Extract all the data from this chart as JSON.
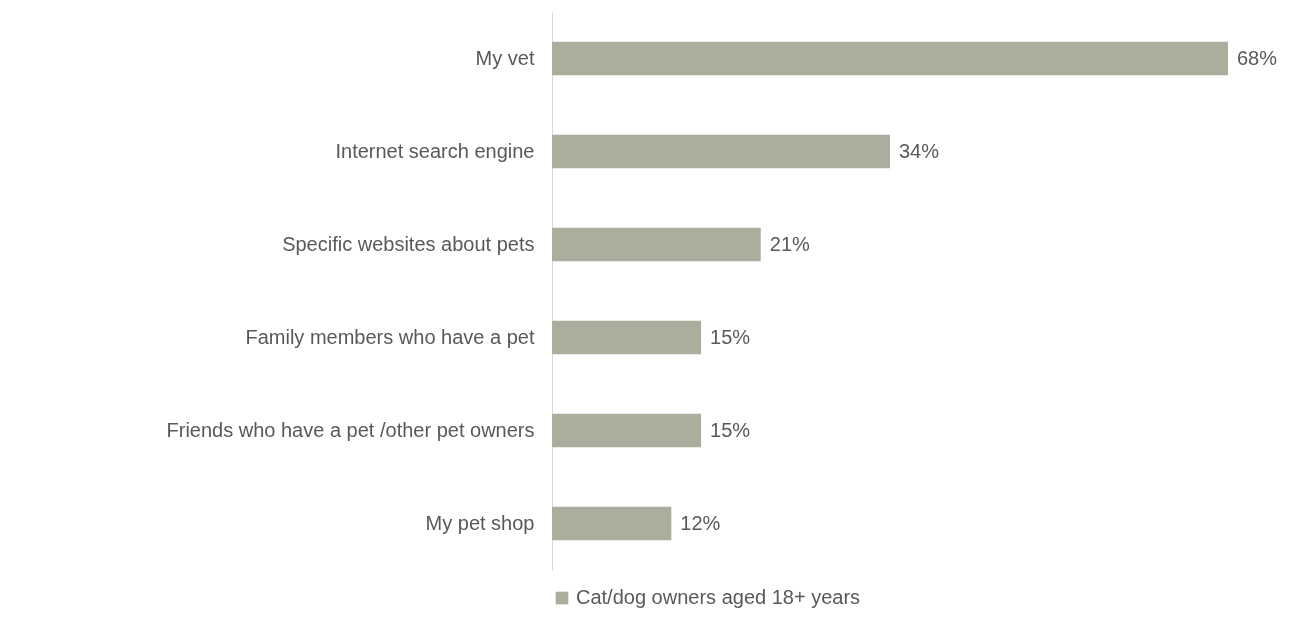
{
  "chart_data": {
    "type": "bar",
    "orientation": "horizontal",
    "categories": [
      "My vet",
      "Internet search engine",
      "Specific websites about pets",
      "Family members who have a pet",
      "Friends who have a pet /other pet owners",
      "My pet shop"
    ],
    "series": [
      {
        "name": "Cat/dog owners aged 18+ years",
        "color": "#adad9d",
        "values": [
          68,
          34,
          21,
          15,
          15,
          12
        ],
        "value_labels": [
          "68%",
          "34%",
          "21%",
          "15%",
          "15%",
          "12%"
        ]
      }
    ],
    "legend": "bottom",
    "grid": false
  }
}
